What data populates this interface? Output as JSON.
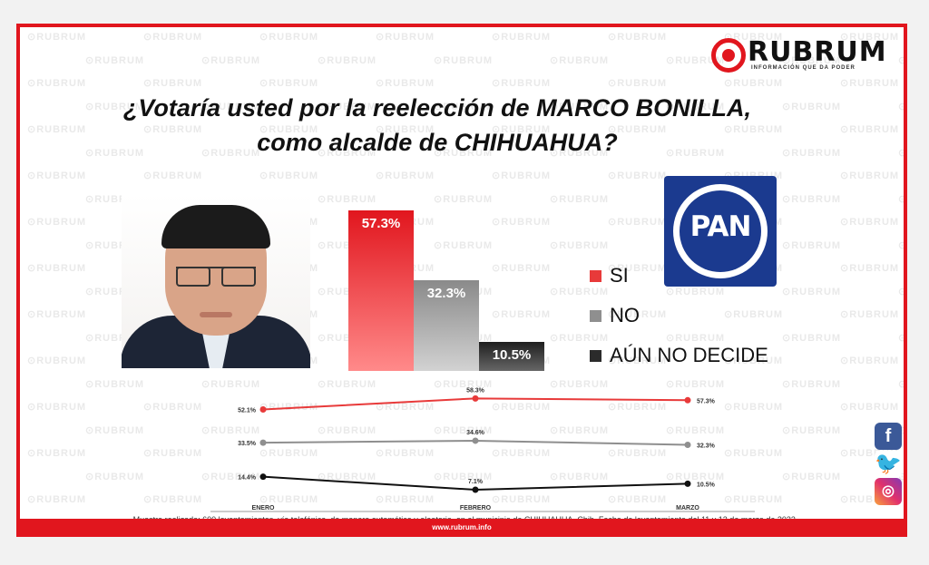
{
  "brand": {
    "name": "RUBRUM",
    "tagline": "INFORMACIÓN QUE DA PODER",
    "url": "www.rubrum.info",
    "watermark": "RUBRUM"
  },
  "title": {
    "line1": "¿Votaría usted por la reelección de MARCO BONILLA,",
    "line2": "como alcalde de CHIHUAHUA?"
  },
  "party_logo": {
    "text": "PAN"
  },
  "colors": {
    "accent": "#e1161e",
    "si": "#e83a3a",
    "no": "#8f8f8f",
    "aun": "#2b2b2b",
    "pan_blue": "#1b3a8f"
  },
  "social_icons": [
    "facebook-icon",
    "twitter-icon",
    "instagram-icon"
  ],
  "footnote": "Muestra realizada: 600 levantamientos, vía telefónica, de manera automática y aleatoria, en el municipio de CHIHUAHUA, Chih. Fecha de levantamiento del 11 y 12 de marzo de 2023.",
  "chart_data": [
    {
      "type": "bar",
      "categories": [
        "SI",
        "NO",
        "AÚN NO DECIDE"
      ],
      "values": [
        57.3,
        32.3,
        10.5
      ],
      "labels": [
        "57.3%",
        "32.3%",
        "10.5%"
      ],
      "ylim": [
        0,
        60
      ],
      "legend": [
        "SI",
        "NO",
        "AÚN NO DECIDE"
      ],
      "legend_position": "right"
    },
    {
      "type": "line",
      "x": [
        "ENERO",
        "FEBRERO",
        "MARZO"
      ],
      "series": [
        {
          "name": "SI",
          "values": [
            52.1,
            58.3,
            57.3
          ],
          "labels": [
            "52.1%",
            "58.3%",
            "57.3%"
          ]
        },
        {
          "name": "NO",
          "values": [
            33.5,
            34.6,
            32.3
          ],
          "labels": [
            "33.5%",
            "34.6%",
            "32.3%"
          ]
        },
        {
          "name": "AÚN NO DECIDE",
          "values": [
            14.4,
            7.1,
            10.5
          ],
          "labels": [
            "14.4%",
            "7.1%",
            "10.5%"
          ]
        }
      ],
      "ylim": [
        0,
        60
      ],
      "grid": false
    }
  ]
}
